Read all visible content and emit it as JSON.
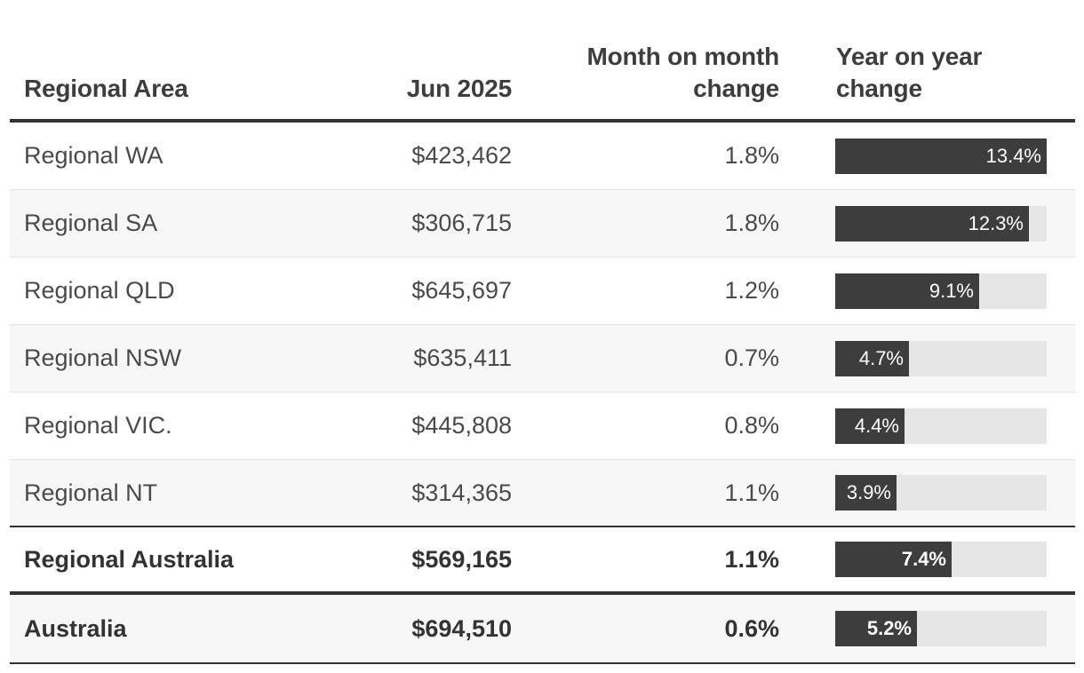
{
  "headers": {
    "region": "Regional Area",
    "jun": "Jun 2025",
    "mom_line1": "Month on month",
    "mom_line2": "change",
    "yoy_line1": "Year on year",
    "yoy_line2": "change"
  },
  "chart_data": {
    "type": "table",
    "columns": [
      "Regional Area",
      "Jun 2025",
      "Month on month change",
      "Year on year change"
    ],
    "bar_max": 13.4,
    "rows": [
      {
        "region": "Regional WA",
        "value": "$423,462",
        "mom": "1.8%",
        "yoy": 13.4,
        "yoy_label": "13.4%",
        "bold": false
      },
      {
        "region": "Regional SA",
        "value": "$306,715",
        "mom": "1.8%",
        "yoy": 12.3,
        "yoy_label": "12.3%",
        "bold": false
      },
      {
        "region": "Regional QLD",
        "value": "$645,697",
        "mom": "1.2%",
        "yoy": 9.1,
        "yoy_label": "9.1%",
        "bold": false
      },
      {
        "region": "Regional NSW",
        "value": "$635,411",
        "mom": "0.7%",
        "yoy": 4.7,
        "yoy_label": "4.7%",
        "bold": false
      },
      {
        "region": "Regional VIC.",
        "value": "$445,808",
        "mom": "0.8%",
        "yoy": 4.4,
        "yoy_label": "4.4%",
        "bold": false
      },
      {
        "region": "Regional NT",
        "value": "$314,365",
        "mom": "1.1%",
        "yoy": 3.9,
        "yoy_label": "3.9%",
        "bold": false
      },
      {
        "region": "Regional Australia",
        "value": "$569,165",
        "mom": "1.1%",
        "yoy": 7.4,
        "yoy_label": "7.4%",
        "bold": true
      },
      {
        "region": "Australia",
        "value": "$694,510",
        "mom": "0.6%",
        "yoy": 5.2,
        "yoy_label": "5.2%",
        "bold": true
      }
    ]
  },
  "colors": {
    "bar_fill": "#3d3d3d",
    "bar_track": "#e6e6e6",
    "text": "#4a4a4a",
    "rule": "#333333"
  }
}
